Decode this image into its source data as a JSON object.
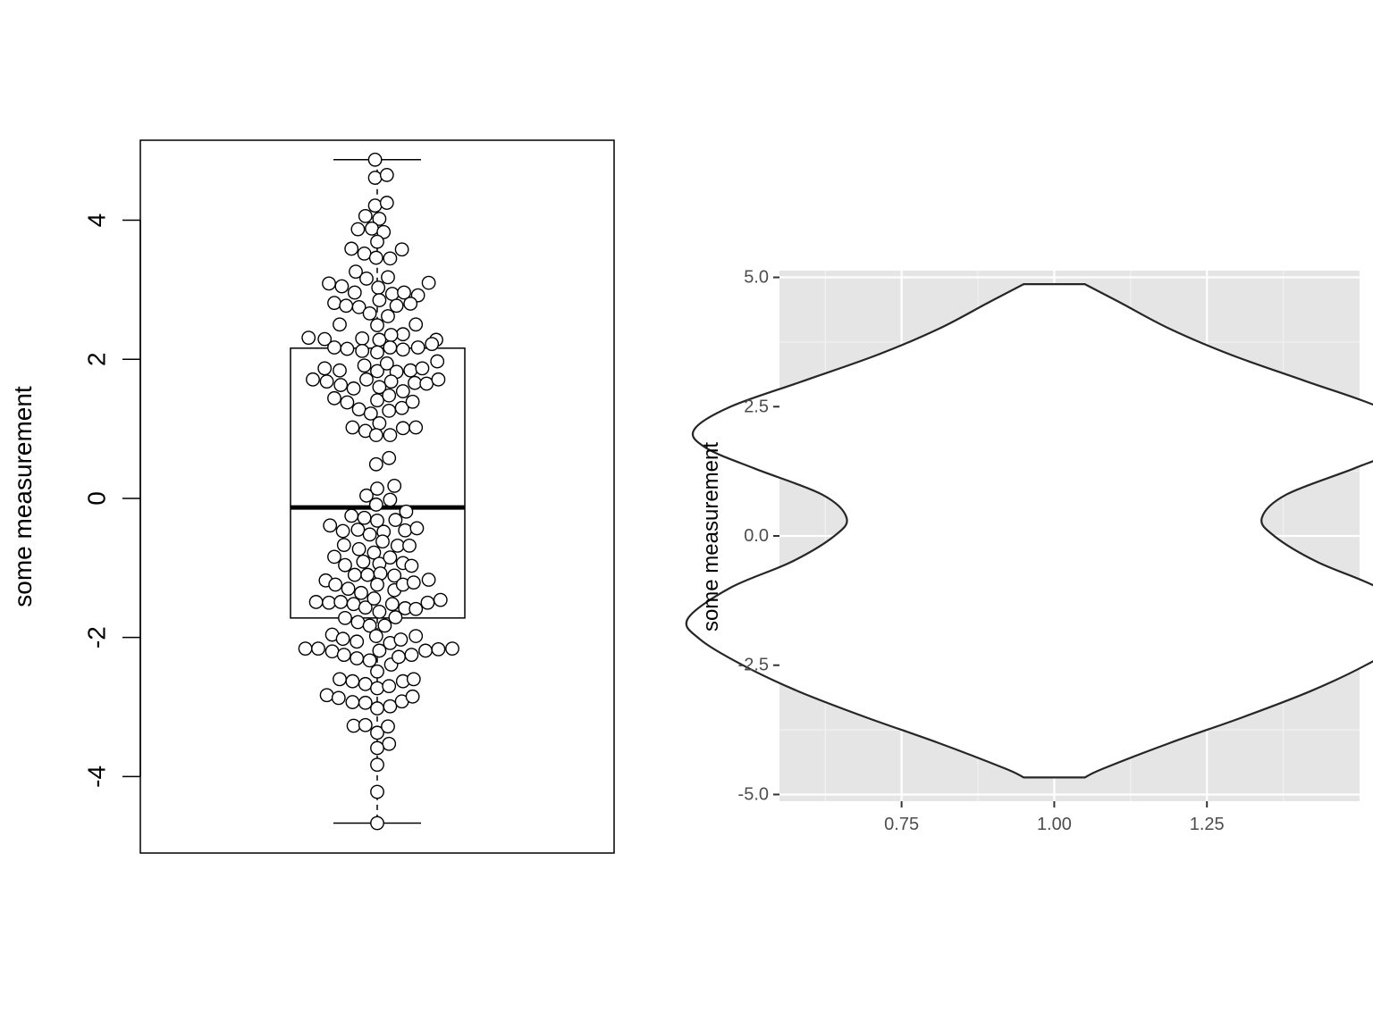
{
  "chart_data": [
    {
      "type": "boxplot",
      "overlay": "beeswarm",
      "ylabel": "some measurement",
      "xlabel": "",
      "ylim": [
        -5.1,
        5.15
      ],
      "yticks": [
        -4,
        -2,
        0,
        2,
        4
      ],
      "ytick_labels": [
        "-4",
        "-2",
        "0",
        "2",
        "4"
      ],
      "box": {
        "whisker_low": -4.67,
        "q1": -1.72,
        "median": -0.13,
        "q3": 2.16,
        "whisker_high": 4.87
      },
      "points": [
        {
          "x": -0.02,
          "y": 4.87
        },
        {
          "x": -0.02,
          "y": 4.61
        },
        {
          "x": 0.09,
          "y": 4.65
        },
        {
          "x": -0.02,
          "y": 4.21
        },
        {
          "x": 0.09,
          "y": 4.25
        },
        {
          "x": -0.11,
          "y": 4.06
        },
        {
          "x": 0.02,
          "y": 4.02
        },
        {
          "x": -0.18,
          "y": 3.87
        },
        {
          "x": -0.05,
          "y": 3.88
        },
        {
          "x": 0.06,
          "y": 3.83
        },
        {
          "x": 0.0,
          "y": 3.69
        },
        {
          "x": -0.24,
          "y": 3.59
        },
        {
          "x": -0.12,
          "y": 3.52
        },
        {
          "x": -0.01,
          "y": 3.46
        },
        {
          "x": 0.12,
          "y": 3.45
        },
        {
          "x": 0.23,
          "y": 3.58
        },
        {
          "x": -0.2,
          "y": 3.26
        },
        {
          "x": -0.1,
          "y": 3.16
        },
        {
          "x": 0.1,
          "y": 3.18
        },
        {
          "x": -0.45,
          "y": 3.09
        },
        {
          "x": -0.33,
          "y": 3.05
        },
        {
          "x": -0.21,
          "y": 2.96
        },
        {
          "x": 0.01,
          "y": 3.03
        },
        {
          "x": 0.14,
          "y": 2.94
        },
        {
          "x": 0.25,
          "y": 2.96
        },
        {
          "x": 0.38,
          "y": 2.92
        },
        {
          "x": 0.48,
          "y": 3.1
        },
        {
          "x": -0.4,
          "y": 2.81
        },
        {
          "x": -0.29,
          "y": 2.77
        },
        {
          "x": -0.17,
          "y": 2.75
        },
        {
          "x": -0.07,
          "y": 2.66
        },
        {
          "x": 0.02,
          "y": 2.85
        },
        {
          "x": 0.1,
          "y": 2.62
        },
        {
          "x": 0.18,
          "y": 2.77
        },
        {
          "x": 0.31,
          "y": 2.8
        },
        {
          "x": -0.35,
          "y": 2.5
        },
        {
          "x": 0.0,
          "y": 2.49
        },
        {
          "x": 0.24,
          "y": 2.36
        },
        {
          "x": 0.36,
          "y": 2.5
        },
        {
          "x": -0.64,
          "y": 2.31
        },
        {
          "x": -0.49,
          "y": 2.29
        },
        {
          "x": -0.14,
          "y": 2.3
        },
        {
          "x": 0.02,
          "y": 2.28
        },
        {
          "x": 0.13,
          "y": 2.35
        },
        {
          "x": 0.55,
          "y": 2.28
        },
        {
          "x": -0.4,
          "y": 2.17
        },
        {
          "x": -0.28,
          "y": 2.15
        },
        {
          "x": -0.14,
          "y": 2.12
        },
        {
          "x": 0.0,
          "y": 2.1
        },
        {
          "x": 0.12,
          "y": 2.17
        },
        {
          "x": 0.24,
          "y": 2.14
        },
        {
          "x": 0.38,
          "y": 2.17
        },
        {
          "x": 0.51,
          "y": 2.22
        },
        {
          "x": -0.49,
          "y": 1.87
        },
        {
          "x": -0.35,
          "y": 1.84
        },
        {
          "x": -0.12,
          "y": 1.91
        },
        {
          "x": 0.0,
          "y": 1.83
        },
        {
          "x": 0.09,
          "y": 1.94
        },
        {
          "x": 0.18,
          "y": 1.82
        },
        {
          "x": 0.31,
          "y": 1.84
        },
        {
          "x": 0.42,
          "y": 1.87
        },
        {
          "x": 0.56,
          "y": 1.97
        },
        {
          "x": -0.6,
          "y": 1.71
        },
        {
          "x": -0.47,
          "y": 1.68
        },
        {
          "x": -0.34,
          "y": 1.63
        },
        {
          "x": -0.22,
          "y": 1.58
        },
        {
          "x": -0.1,
          "y": 1.71
        },
        {
          "x": 0.02,
          "y": 1.6
        },
        {
          "x": 0.13,
          "y": 1.68
        },
        {
          "x": 0.24,
          "y": 1.54
        },
        {
          "x": 0.35,
          "y": 1.66
        },
        {
          "x": 0.46,
          "y": 1.65
        },
        {
          "x": 0.57,
          "y": 1.71
        },
        {
          "x": -0.4,
          "y": 1.44
        },
        {
          "x": -0.28,
          "y": 1.38
        },
        {
          "x": -0.17,
          "y": 1.28
        },
        {
          "x": -0.06,
          "y": 1.22
        },
        {
          "x": 0.0,
          "y": 1.41
        },
        {
          "x": 0.11,
          "y": 1.48
        },
        {
          "x": 0.11,
          "y": 1.26
        },
        {
          "x": 0.23,
          "y": 1.3
        },
        {
          "x": 0.33,
          "y": 1.39
        },
        {
          "x": -0.23,
          "y": 1.02
        },
        {
          "x": -0.11,
          "y": 0.97
        },
        {
          "x": 0.02,
          "y": 1.08
        },
        {
          "x": -0.01,
          "y": 0.91
        },
        {
          "x": 0.12,
          "y": 0.91
        },
        {
          "x": 0.24,
          "y": 1.01
        },
        {
          "x": 0.36,
          "y": 1.02
        },
        {
          "x": 0.11,
          "y": 0.58
        },
        {
          "x": -0.01,
          "y": 0.49
        },
        {
          "x": -0.1,
          "y": 0.04
        },
        {
          "x": 0.0,
          "y": 0.14
        },
        {
          "x": 0.16,
          "y": 0.18
        },
        {
          "x": -0.01,
          "y": -0.09
        },
        {
          "x": 0.12,
          "y": -0.02
        },
        {
          "x": 0.27,
          "y": -0.19
        },
        {
          "x": -0.24,
          "y": -0.25
        },
        {
          "x": -0.12,
          "y": -0.28
        },
        {
          "x": 0.0,
          "y": -0.32
        },
        {
          "x": 0.17,
          "y": -0.31
        },
        {
          "x": -0.44,
          "y": -0.39
        },
        {
          "x": -0.32,
          "y": -0.47
        },
        {
          "x": -0.18,
          "y": -0.45
        },
        {
          "x": -0.07,
          "y": -0.52
        },
        {
          "x": 0.06,
          "y": -0.48
        },
        {
          "x": 0.26,
          "y": -0.46
        },
        {
          "x": 0.37,
          "y": -0.43
        },
        {
          "x": -0.31,
          "y": -0.67
        },
        {
          "x": -0.17,
          "y": -0.73
        },
        {
          "x": -0.03,
          "y": -0.78
        },
        {
          "x": 0.05,
          "y": -0.62
        },
        {
          "x": 0.19,
          "y": -0.68
        },
        {
          "x": 0.3,
          "y": -0.68
        },
        {
          "x": -0.4,
          "y": -0.84
        },
        {
          "x": -0.3,
          "y": -0.96
        },
        {
          "x": -0.13,
          "y": -0.91
        },
        {
          "x": 0.02,
          "y": -0.94
        },
        {
          "x": 0.12,
          "y": -0.85
        },
        {
          "x": 0.24,
          "y": -0.93
        },
        {
          "x": 0.32,
          "y": -0.97
        },
        {
          "x": -0.21,
          "y": -1.1
        },
        {
          "x": -0.09,
          "y": -1.1
        },
        {
          "x": 0.03,
          "y": -1.08
        },
        {
          "x": 0.16,
          "y": -1.11
        },
        {
          "x": -0.48,
          "y": -1.18
        },
        {
          "x": -0.39,
          "y": -1.24
        },
        {
          "x": -0.27,
          "y": -1.3
        },
        {
          "x": -0.15,
          "y": -1.36
        },
        {
          "x": 0.0,
          "y": -1.24
        },
        {
          "x": 0.16,
          "y": -1.32
        },
        {
          "x": 0.24,
          "y": -1.24
        },
        {
          "x": 0.34,
          "y": -1.21
        },
        {
          "x": 0.48,
          "y": -1.17
        },
        {
          "x": -0.57,
          "y": -1.49
        },
        {
          "x": -0.45,
          "y": -1.5
        },
        {
          "x": -0.34,
          "y": -1.49
        },
        {
          "x": -0.22,
          "y": -1.52
        },
        {
          "x": -0.11,
          "y": -1.57
        },
        {
          "x": -0.03,
          "y": -1.44
        },
        {
          "x": 0.02,
          "y": -1.63
        },
        {
          "x": 0.14,
          "y": -1.52
        },
        {
          "x": 0.26,
          "y": -1.58
        },
        {
          "x": 0.36,
          "y": -1.59
        },
        {
          "x": 0.47,
          "y": -1.5
        },
        {
          "x": 0.59,
          "y": -1.46
        },
        {
          "x": -0.3,
          "y": -1.72
        },
        {
          "x": -0.18,
          "y": -1.78
        },
        {
          "x": -0.07,
          "y": -1.83
        },
        {
          "x": 0.07,
          "y": -1.83
        },
        {
          "x": 0.17,
          "y": -1.71
        },
        {
          "x": -0.42,
          "y": -1.96
        },
        {
          "x": -0.32,
          "y": -2.02
        },
        {
          "x": -0.19,
          "y": -2.06
        },
        {
          "x": -0.01,
          "y": -1.98
        },
        {
          "x": 0.12,
          "y": -2.08
        },
        {
          "x": 0.22,
          "y": -2.03
        },
        {
          "x": 0.36,
          "y": -1.98
        },
        {
          "x": -0.67,
          "y": -2.16
        },
        {
          "x": -0.55,
          "y": -2.16
        },
        {
          "x": -0.42,
          "y": -2.2
        },
        {
          "x": -0.31,
          "y": -2.25
        },
        {
          "x": -0.19,
          "y": -2.3
        },
        {
          "x": -0.07,
          "y": -2.33
        },
        {
          "x": 0.02,
          "y": -2.19
        },
        {
          "x": 0.13,
          "y": -2.39
        },
        {
          "x": 0.2,
          "y": -2.28
        },
        {
          "x": 0.32,
          "y": -2.25
        },
        {
          "x": 0.45,
          "y": -2.19
        },
        {
          "x": 0.57,
          "y": -2.17
        },
        {
          "x": 0.7,
          "y": -2.16
        },
        {
          "x": -0.35,
          "y": -2.6
        },
        {
          "x": -0.23,
          "y": -2.63
        },
        {
          "x": -0.11,
          "y": -2.67
        },
        {
          "x": 0.0,
          "y": -2.49
        },
        {
          "x": 0.0,
          "y": -2.73
        },
        {
          "x": 0.11,
          "y": -2.7
        },
        {
          "x": 0.24,
          "y": -2.63
        },
        {
          "x": 0.34,
          "y": -2.6
        },
        {
          "x": -0.47,
          "y": -2.83
        },
        {
          "x": -0.36,
          "y": -2.87
        },
        {
          "x": -0.23,
          "y": -2.93
        },
        {
          "x": -0.11,
          "y": -2.94
        },
        {
          "x": 0.0,
          "y": -3.02
        },
        {
          "x": 0.12,
          "y": -2.99
        },
        {
          "x": 0.23,
          "y": -2.92
        },
        {
          "x": 0.33,
          "y": -2.85
        },
        {
          "x": -0.22,
          "y": -3.27
        },
        {
          "x": -0.11,
          "y": -3.26
        },
        {
          "x": 0.0,
          "y": -3.37
        },
        {
          "x": 0.1,
          "y": -3.28
        },
        {
          "x": 0.11,
          "y": -3.53
        },
        {
          "x": 0.0,
          "y": -3.59
        },
        {
          "x": 0.0,
          "y": -3.83
        },
        {
          "x": 0.0,
          "y": -4.22
        },
        {
          "x": 0.0,
          "y": -4.67
        }
      ]
    },
    {
      "type": "violin",
      "ylabel": "some measurement",
      "xlabel": "",
      "xlim": [
        0.55,
        1.5
      ],
      "ylim": [
        -5.13,
        5.13
      ],
      "xticks": [
        0.75,
        1.0,
        1.25
      ],
      "xtick_labels": [
        "0.75",
        "1.00",
        "1.25"
      ],
      "yticks": [
        -5,
        -2.5,
        0,
        2.5,
        5
      ],
      "ytick_labels": [
        "-5.0",
        "-2.5",
        "0.0",
        "2.5",
        "5.0"
      ],
      "grid": true,
      "center_x": 1.0,
      "violin_profile": [
        {
          "y": -4.67,
          "half_width": 0.05
        },
        {
          "y": -4.5,
          "half_width": 0.08
        },
        {
          "y": -4.0,
          "half_width": 0.19
        },
        {
          "y": -3.5,
          "half_width": 0.31
        },
        {
          "y": -3.0,
          "half_width": 0.42
        },
        {
          "y": -2.5,
          "half_width": 0.51
        },
        {
          "y": -2.0,
          "half_width": 0.58
        },
        {
          "y": -1.6,
          "half_width": 0.6
        },
        {
          "y": -1.0,
          "half_width": 0.53
        },
        {
          "y": -0.5,
          "half_width": 0.43
        },
        {
          "y": 0.0,
          "half_width": 0.36
        },
        {
          "y": 0.35,
          "half_width": 0.34
        },
        {
          "y": 0.8,
          "half_width": 0.38
        },
        {
          "y": 1.3,
          "half_width": 0.49
        },
        {
          "y": 1.7,
          "half_width": 0.57
        },
        {
          "y": 2.05,
          "half_width": 0.59
        },
        {
          "y": 2.5,
          "half_width": 0.53
        },
        {
          "y": 3.0,
          "half_width": 0.41
        },
        {
          "y": 3.5,
          "half_width": 0.29
        },
        {
          "y": 4.0,
          "half_width": 0.19
        },
        {
          "y": 4.5,
          "half_width": 0.11
        },
        {
          "y": 4.87,
          "half_width": 0.05
        }
      ]
    }
  ]
}
